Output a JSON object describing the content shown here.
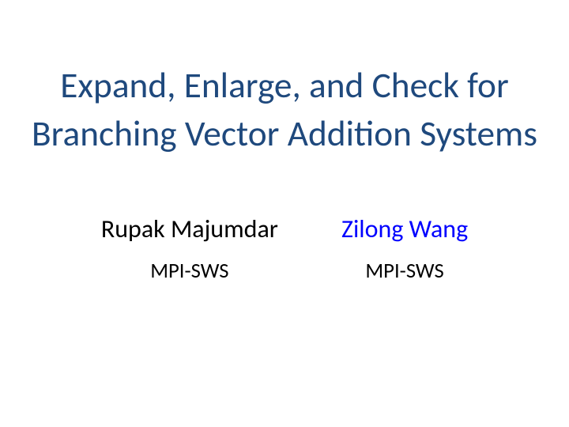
{
  "background_color": "#ffffff",
  "title": {
    "line1": "Expand, Enlarge, and Check for",
    "line2": "Branching Vector Addition Systems",
    "color": "#1f497d",
    "fontsize_pt": 34,
    "font_weight": 400
  },
  "authors": [
    {
      "name": "Rupak Majumdar",
      "name_color": "#000000",
      "affiliation": "MPI-SWS",
      "affiliation_color": "#000000"
    },
    {
      "name": "Zilong Wang",
      "name_color": "#0000ff",
      "affiliation": "MPI-SWS",
      "affiliation_color": "#000000"
    }
  ],
  "author_name_fontsize_pt": 24,
  "author_affil_fontsize_pt": 20
}
